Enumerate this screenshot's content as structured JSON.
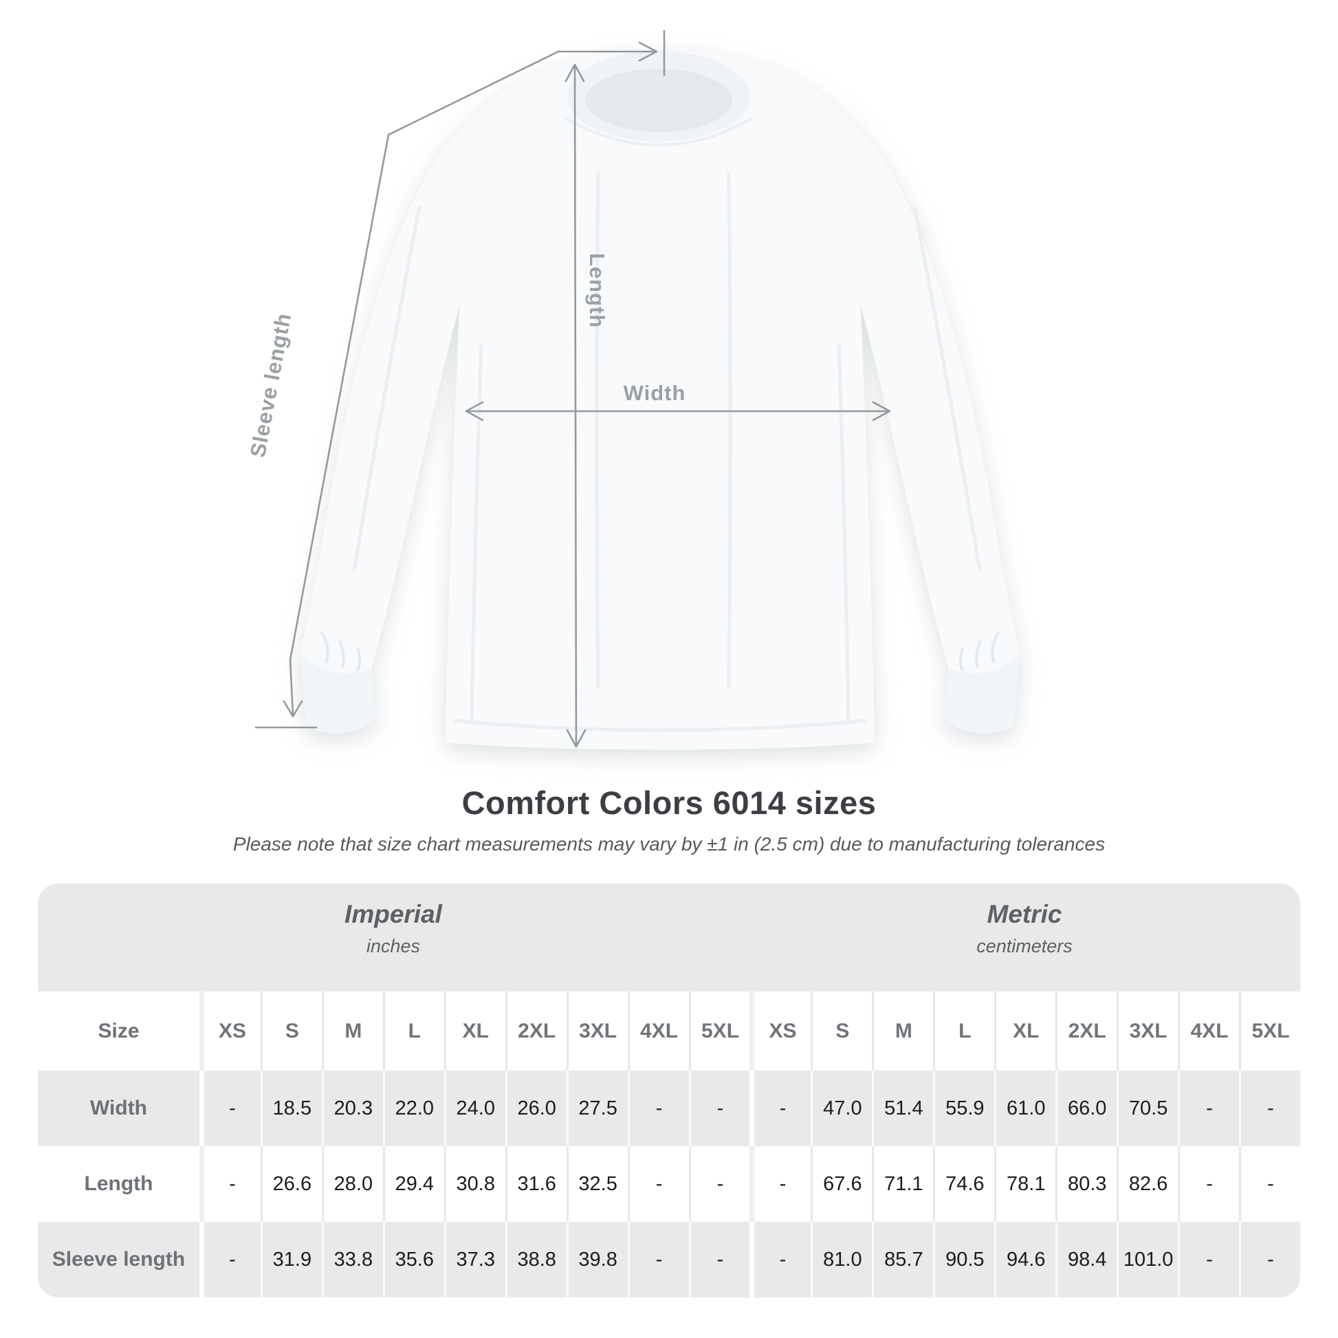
{
  "title": "Comfort Colors 6014 sizes",
  "note": "Please note that size chart measurements may vary by ±1 in (2.5 cm) due to manufacturing tolerances",
  "diagram": {
    "labels": {
      "width": "Width",
      "length": "Length",
      "sleeve": "Sleeve length"
    }
  },
  "table": {
    "units": [
      {
        "name": "Imperial",
        "sub": "inches"
      },
      {
        "name": "Metric",
        "sub": "centimeters"
      }
    ],
    "size_label": "Size",
    "sizes": [
      "XS",
      "S",
      "M",
      "L",
      "XL",
      "2XL",
      "3XL",
      "4XL",
      "5XL"
    ],
    "rows": [
      {
        "label": "Width",
        "imperial": [
          "-",
          "18.5",
          "20.3",
          "22.0",
          "24.0",
          "26.0",
          "27.5",
          "-",
          "-"
        ],
        "metric": [
          "-",
          "47.0",
          "51.4",
          "55.9",
          "61.0",
          "66.0",
          "70.5",
          "-",
          "-"
        ]
      },
      {
        "label": "Length",
        "imperial": [
          "-",
          "26.6",
          "28.0",
          "29.4",
          "30.8",
          "31.6",
          "32.5",
          "-",
          "-"
        ],
        "metric": [
          "-",
          "67.6",
          "71.1",
          "74.6",
          "78.1",
          "80.3",
          "82.6",
          "-",
          "-"
        ]
      },
      {
        "label": "Sleeve length",
        "imperial": [
          "-",
          "31.9",
          "33.8",
          "35.6",
          "37.3",
          "38.8",
          "39.8",
          "-",
          "-"
        ],
        "metric": [
          "-",
          "81.0",
          "85.7",
          "90.5",
          "94.6",
          "98.4",
          "101.0",
          "-",
          "-"
        ]
      }
    ]
  },
  "chart_data": {
    "type": "table",
    "title": "Comfort Colors 6014 sizes",
    "subtitle": "Please note that size chart measurements may vary by ±1 in (2.5 cm) due to manufacturing tolerances",
    "columns": [
      "XS",
      "S",
      "M",
      "L",
      "XL",
      "2XL",
      "3XL",
      "4XL",
      "5XL"
    ],
    "unit_groups": [
      "Imperial (inches)",
      "Metric (centimeters)"
    ],
    "rows": [
      {
        "label": "Width",
        "inches": [
          null,
          18.5,
          20.3,
          22.0,
          24.0,
          26.0,
          27.5,
          null,
          null
        ],
        "centimeters": [
          null,
          47.0,
          51.4,
          55.9,
          61.0,
          66.0,
          70.5,
          null,
          null
        ]
      },
      {
        "label": "Length",
        "inches": [
          null,
          26.6,
          28.0,
          29.4,
          30.8,
          31.6,
          32.5,
          null,
          null
        ],
        "centimeters": [
          null,
          67.6,
          71.1,
          74.6,
          78.1,
          80.3,
          82.6,
          null,
          null
        ]
      },
      {
        "label": "Sleeve length",
        "inches": [
          null,
          31.9,
          33.8,
          35.6,
          37.3,
          38.8,
          39.8,
          null,
          null
        ],
        "centimeters": [
          null,
          81.0,
          85.7,
          90.5,
          94.6,
          98.4,
          101.0,
          null,
          null
        ]
      }
    ]
  },
  "colors": {
    "table_band": "#e9e9e9",
    "value_text": "#1c1c1c",
    "header_text": "#6d7277",
    "annotation": "#94999d",
    "title_text": "#3b3f43"
  }
}
